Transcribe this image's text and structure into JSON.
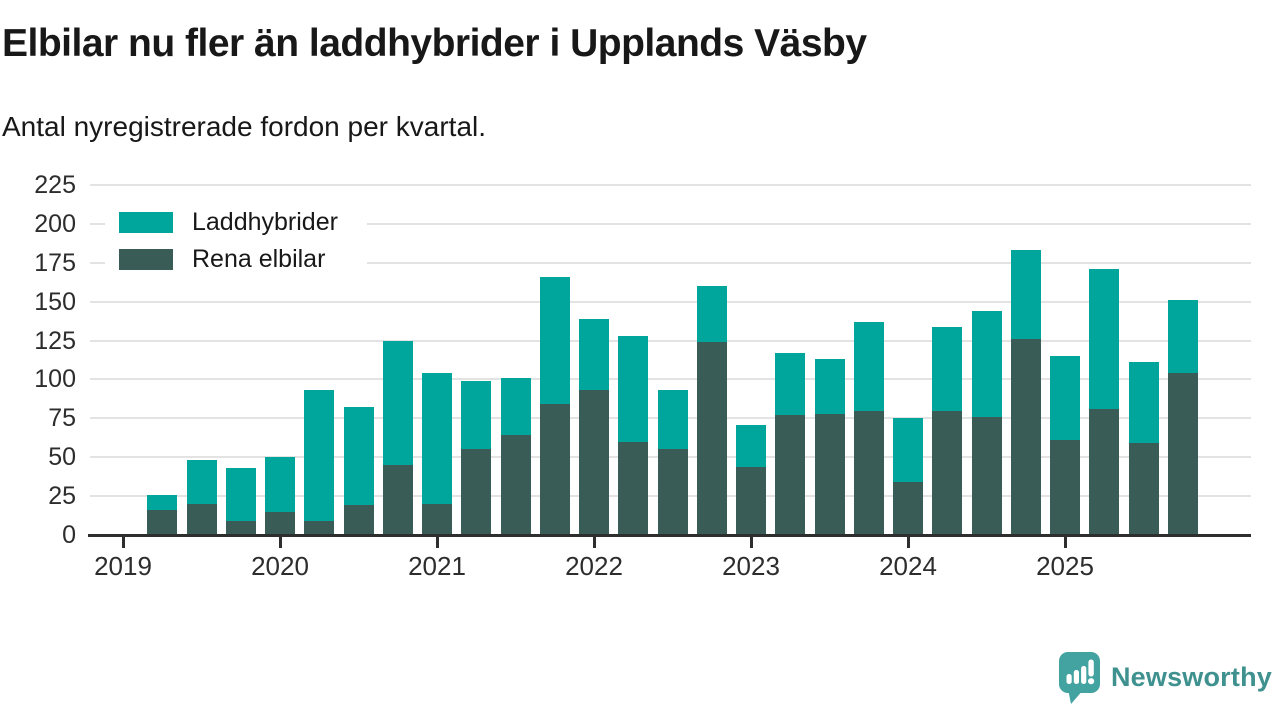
{
  "title": "Elbilar nu fler än laddhybrider i Upplands Väsby",
  "subtitle": "Antal nyregistrerade fordon per kvartal.",
  "legend": [
    {
      "label": "Laddhybrider",
      "color": "#00a69c"
    },
    {
      "label": "Rena elbilar",
      "color": "#3a5c57"
    }
  ],
  "brand": {
    "name": "Newsworthy",
    "icon": "speech-bubble-bar-chart-icon",
    "color": "#43a3a1",
    "text_color": "#3e918e"
  },
  "colors": {
    "laddhybrider": "#00a69c",
    "rena_elbilar": "#3a5c57",
    "grid": "#e3e3e3",
    "axis": "#2e2e2e",
    "text": "#2d2d2d",
    "title": "#181818"
  },
  "chart_data": {
    "type": "bar",
    "stacked": true,
    "title": "Elbilar nu fler än laddhybrider i Upplands Väsby",
    "subtitle": "Antal nyregistrerade fordon per kvartal.",
    "ylabel": "",
    "xlabel": "",
    "ylim": [
      0,
      225
    ],
    "yticks": [
      0,
      25,
      50,
      75,
      100,
      125,
      150,
      175,
      200,
      225
    ],
    "xticks": [
      "2019",
      "2020",
      "2021",
      "2022",
      "2023",
      "2024",
      "2025"
    ],
    "grid": true,
    "legend_position": "top-left",
    "x": [
      "2019Q2",
      "2019Q3",
      "2019Q4",
      "2020Q1",
      "2020Q2",
      "2020Q3",
      "2020Q4",
      "2021Q1",
      "2021Q2",
      "2021Q3",
      "2021Q4",
      "2022Q1",
      "2022Q2",
      "2022Q3",
      "2022Q4",
      "2023Q1",
      "2023Q2",
      "2023Q3",
      "2023Q4",
      "2024Q1",
      "2024Q2",
      "2024Q3",
      "2024Q4",
      "2025Q1",
      "2025Q2",
      "2025Q3",
      "2025Q4"
    ],
    "series": [
      {
        "name": "Rena elbilar",
        "color": "#3a5c57",
        "values": [
          16,
          20,
          9,
          15,
          9,
          19,
          45,
          20,
          55,
          64,
          84,
          93,
          60,
          55,
          124,
          44,
          77,
          78,
          80,
          34,
          80,
          76,
          126,
          61,
          81,
          59,
          104
        ]
      },
      {
        "name": "Laddhybrider",
        "color": "#00a69c",
        "values": [
          10,
          28,
          34,
          35,
          84,
          63,
          80,
          84,
          44,
          37,
          82,
          46,
          68,
          38,
          36,
          27,
          40,
          35,
          57,
          41,
          54,
          68,
          57,
          54,
          90,
          52,
          47
        ]
      }
    ],
    "totals": [
      26,
      48,
      43,
      50,
      93,
      82,
      125,
      104,
      99,
      101,
      166,
      139,
      128,
      93,
      160,
      71,
      117,
      113,
      137,
      75,
      134,
      144,
      183,
      115,
      171,
      111,
      151
    ]
  }
}
